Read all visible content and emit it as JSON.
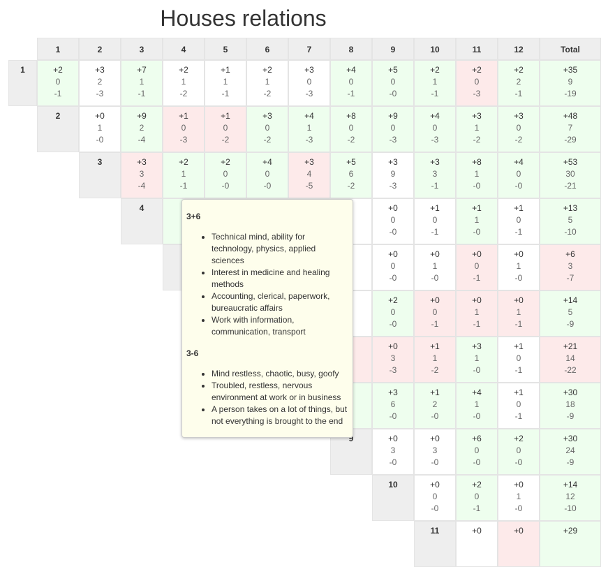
{
  "title": "Houses relations",
  "columns": [
    "1",
    "2",
    "3",
    "4",
    "5",
    "6",
    "7",
    "8",
    "9",
    "10",
    "11",
    "12",
    "Total"
  ],
  "rows": [
    {
      "label": "1",
      "cells": [
        {
          "tone": "green",
          "values": [
            "+2",
            "0",
            "-1"
          ]
        },
        {
          "tone": "white",
          "values": [
            "+3",
            "2",
            "-3"
          ]
        },
        {
          "tone": "green",
          "values": [
            "+7",
            "1",
            "-1"
          ]
        },
        {
          "tone": "white",
          "values": [
            "+2",
            "1",
            "-2"
          ]
        },
        {
          "tone": "white",
          "values": [
            "+1",
            "1",
            "-1"
          ]
        },
        {
          "tone": "white",
          "values": [
            "+2",
            "1",
            "-2"
          ]
        },
        {
          "tone": "white",
          "values": [
            "+3",
            "0",
            "-3"
          ]
        },
        {
          "tone": "green",
          "values": [
            "+4",
            "0",
            "-1"
          ]
        },
        {
          "tone": "green",
          "values": [
            "+5",
            "0",
            "-0"
          ]
        },
        {
          "tone": "green",
          "values": [
            "+2",
            "1",
            "-1"
          ]
        },
        {
          "tone": "red",
          "values": [
            "+2",
            "0",
            "-3"
          ]
        },
        {
          "tone": "green",
          "values": [
            "+2",
            "2",
            "-1"
          ]
        },
        {
          "tone": "green",
          "values": [
            "+35",
            "9",
            "-19"
          ]
        }
      ]
    },
    {
      "label": "2",
      "cells": [
        {
          "tone": "white",
          "values": [
            "+0",
            "1",
            "-0"
          ]
        },
        {
          "tone": "green",
          "values": [
            "+9",
            "2",
            "-4"
          ]
        },
        {
          "tone": "red",
          "values": [
            "+1",
            "0",
            "-3"
          ]
        },
        {
          "tone": "red",
          "values": [
            "+1",
            "0",
            "-2"
          ]
        },
        {
          "tone": "green",
          "values": [
            "+3",
            "0",
            "-2"
          ]
        },
        {
          "tone": "green",
          "values": [
            "+4",
            "1",
            "-3"
          ]
        },
        {
          "tone": "green",
          "values": [
            "+8",
            "0",
            "-2"
          ]
        },
        {
          "tone": "green",
          "values": [
            "+9",
            "0",
            "-3"
          ]
        },
        {
          "tone": "green",
          "values": [
            "+4",
            "0",
            "-3"
          ]
        },
        {
          "tone": "green",
          "values": [
            "+3",
            "1",
            "-2"
          ]
        },
        {
          "tone": "green",
          "values": [
            "+3",
            "0",
            "-2"
          ]
        },
        {
          "tone": "green",
          "values": [
            "+48",
            "7",
            "-29"
          ]
        }
      ]
    },
    {
      "label": "3",
      "cells": [
        {
          "tone": "red",
          "values": [
            "+3",
            "3",
            "-4"
          ]
        },
        {
          "tone": "green",
          "values": [
            "+2",
            "1",
            "-1"
          ]
        },
        {
          "tone": "green",
          "values": [
            "+2",
            "0",
            "-0"
          ]
        },
        {
          "tone": "green",
          "values": [
            "+4",
            "0",
            "-0"
          ]
        },
        {
          "tone": "red",
          "values": [
            "+3",
            "4",
            "-5"
          ]
        },
        {
          "tone": "green",
          "values": [
            "+5",
            "6",
            "-2"
          ]
        },
        {
          "tone": "white",
          "values": [
            "+3",
            "9",
            "-3"
          ]
        },
        {
          "tone": "green",
          "values": [
            "+3",
            "3",
            "-1"
          ]
        },
        {
          "tone": "green",
          "values": [
            "+8",
            "1",
            "-0"
          ]
        },
        {
          "tone": "green",
          "values": [
            "+4",
            "0",
            "-0"
          ]
        },
        {
          "tone": "green",
          "values": [
            "+53",
            "30",
            "-21"
          ]
        }
      ]
    },
    {
      "label": "4",
      "cells": [
        {
          "tone": "green"
        },
        {
          "tone": "white"
        },
        {
          "tone": "white"
        },
        {
          "tone": "white"
        },
        {
          "tone": "white"
        },
        {
          "tone": "white",
          "values": [
            "+0",
            "0",
            "-0"
          ]
        },
        {
          "tone": "white",
          "values": [
            "+1",
            "0",
            "-1"
          ]
        },
        {
          "tone": "green",
          "values": [
            "+1",
            "1",
            "-0"
          ]
        },
        {
          "tone": "white",
          "values": [
            "+1",
            "0",
            "-1"
          ]
        },
        {
          "tone": "green",
          "values": [
            "+13",
            "5",
            "-10"
          ]
        }
      ]
    },
    {
      "label": null,
      "cells": [
        {
          "tone": "white"
        },
        {
          "tone": "white"
        },
        {
          "tone": "white"
        },
        {
          "tone": "white"
        },
        {
          "tone": "white",
          "values": [
            "+0",
            "0",
            "-0"
          ]
        },
        {
          "tone": "white",
          "values": [
            "+0",
            "1",
            "-0"
          ]
        },
        {
          "tone": "red",
          "values": [
            "+0",
            "0",
            "-1"
          ]
        },
        {
          "tone": "white",
          "values": [
            "+0",
            "1",
            "-0"
          ]
        },
        {
          "tone": "red",
          "values": [
            "+6",
            "3",
            "-7"
          ]
        }
      ]
    },
    {
      "label": null,
      "cells": [
        {
          "tone": "white"
        },
        {
          "tone": "white"
        },
        {
          "tone": "white"
        },
        {
          "tone": "green",
          "values": [
            "+2",
            "0",
            "-0"
          ]
        },
        {
          "tone": "red",
          "values": [
            "+0",
            "0",
            "-1"
          ]
        },
        {
          "tone": "red",
          "values": [
            "+0",
            "1",
            "-1"
          ]
        },
        {
          "tone": "red",
          "values": [
            "+0",
            "1",
            "-1"
          ]
        },
        {
          "tone": "green",
          "values": [
            "+14",
            "5",
            "-9"
          ]
        }
      ]
    },
    {
      "label": null,
      "cells": [
        {
          "tone": "white"
        },
        {
          "tone": "red"
        },
        {
          "tone": "red",
          "values": [
            "+0",
            "3",
            "-3"
          ]
        },
        {
          "tone": "red",
          "values": [
            "+1",
            "1",
            "-2"
          ]
        },
        {
          "tone": "green",
          "values": [
            "+3",
            "1",
            "-0"
          ]
        },
        {
          "tone": "white",
          "values": [
            "+1",
            "0",
            "-1"
          ]
        },
        {
          "tone": "red",
          "values": [
            "+21",
            "14",
            "-22"
          ]
        }
      ]
    },
    {
      "label": null,
      "cells": [
        {
          "tone": "green"
        },
        {
          "tone": "green",
          "values": [
            "+3",
            "6",
            "-0"
          ]
        },
        {
          "tone": "green",
          "values": [
            "+1",
            "2",
            "-0"
          ]
        },
        {
          "tone": "green",
          "values": [
            "+4",
            "1",
            "-0"
          ]
        },
        {
          "tone": "white",
          "values": [
            "+1",
            "0",
            "-1"
          ]
        },
        {
          "tone": "green",
          "values": [
            "+30",
            "18",
            "-9"
          ]
        }
      ]
    },
    {
      "label": "9",
      "cells": [
        {
          "tone": "white",
          "values": [
            "+0",
            "3",
            "-0"
          ]
        },
        {
          "tone": "white",
          "values": [
            "+0",
            "3",
            "-0"
          ]
        },
        {
          "tone": "green",
          "values": [
            "+6",
            "0",
            "-0"
          ]
        },
        {
          "tone": "green",
          "values": [
            "+2",
            "0",
            "-0"
          ]
        },
        {
          "tone": "green",
          "values": [
            "+30",
            "24",
            "-9"
          ]
        }
      ]
    },
    {
      "label": "10",
      "cells": [
        {
          "tone": "white",
          "values": [
            "+0",
            "0",
            "-0"
          ]
        },
        {
          "tone": "green",
          "values": [
            "+2",
            "0",
            "-1"
          ]
        },
        {
          "tone": "white",
          "values": [
            "+0",
            "1",
            "-0"
          ]
        },
        {
          "tone": "green",
          "values": [
            "+14",
            "12",
            "-10"
          ]
        }
      ]
    },
    {
      "label": "11",
      "cells": [
        {
          "tone": "white",
          "values": [
            "+0"
          ]
        },
        {
          "tone": "red",
          "values": [
            "+0"
          ]
        },
        {
          "tone": "green",
          "values": [
            "+29"
          ]
        }
      ]
    }
  ],
  "tooltip": {
    "sections": [
      {
        "heading": "3+6",
        "items": [
          "Technical mind, ability for technology, physics, applied sciences",
          "Interest in medicine and healing methods",
          "Accounting, clerical, paperwork, bureaucratic affairs",
          "Work with information, communication, transport"
        ]
      },
      {
        "heading": "3-6",
        "items": [
          "Mind restless, chaotic, busy, goofy",
          "Troubled, restless, nervous environment at work or in business",
          "A person takes on a lot of things, but not everything is brought to the end"
        ]
      }
    ]
  }
}
